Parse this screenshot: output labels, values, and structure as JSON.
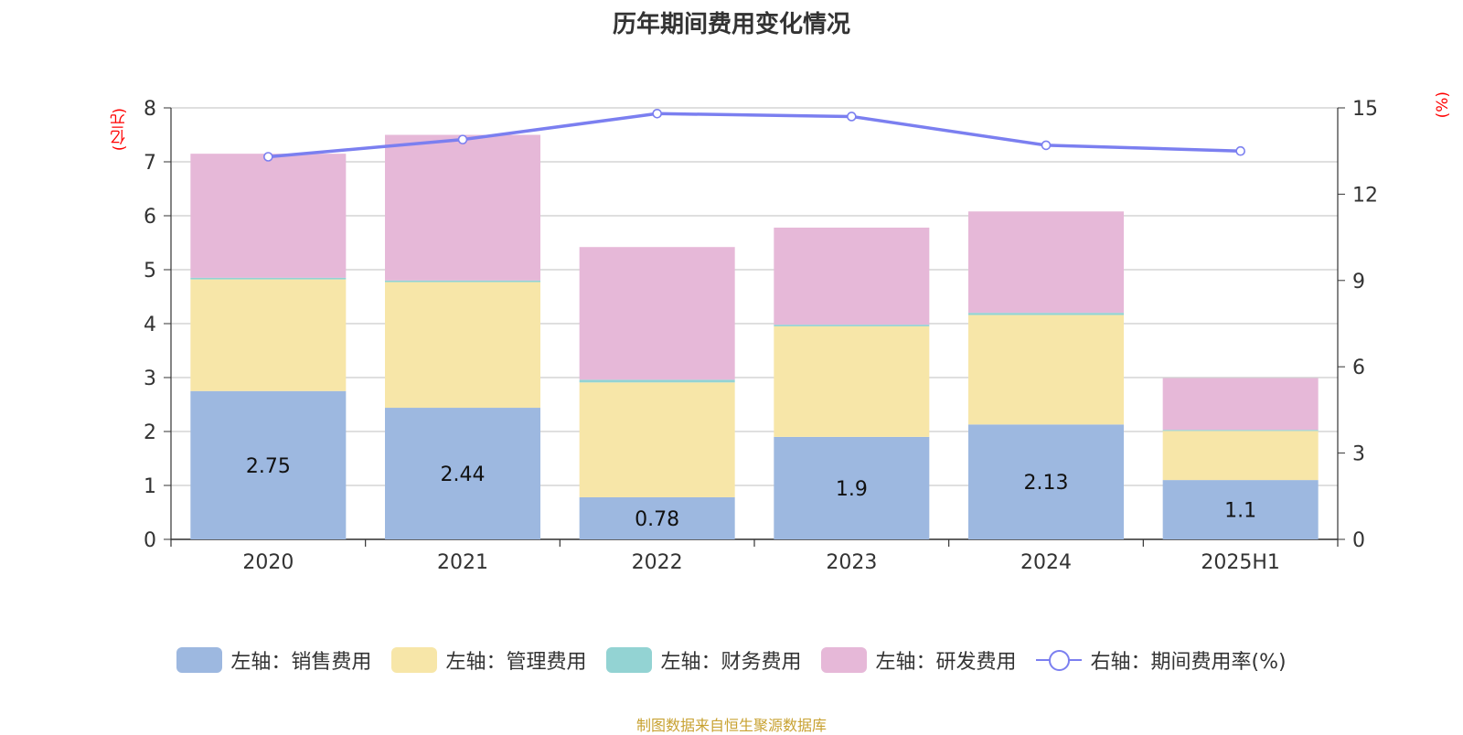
{
  "title": "历年期间费用变化情况",
  "left_unit": "(亿元)",
  "right_unit": "(%)",
  "source": "制图数据来自恒生聚源数据库",
  "colors": {
    "sales": "#9db8e0",
    "admin": "#f7e6a8",
    "finance": "#93d3d3",
    "rd": "#e6b8d8",
    "rate_line": "#7b7ff0"
  },
  "legend": [
    {
      "label": "左轴：销售费用",
      "kind": "box",
      "color": "#9db8e0"
    },
    {
      "label": "左轴：管理费用",
      "kind": "box",
      "color": "#f7e6a8"
    },
    {
      "label": "左轴：财务费用",
      "kind": "box",
      "color": "#93d3d3"
    },
    {
      "label": "左轴：研发费用",
      "kind": "box",
      "color": "#e6b8d8"
    },
    {
      "label": "右轴：期间费用率(%)",
      "kind": "line",
      "color": "#7b7ff0"
    }
  ],
  "chart_data": {
    "type": "bar",
    "stacked": true,
    "title": "历年期间费用变化情况",
    "categories": [
      "2020",
      "2021",
      "2022",
      "2023",
      "2024",
      "2025H1"
    ],
    "ylabel_left": "(亿元)",
    "ylabel_right": "(%)",
    "ylim_left": [
      0,
      8
    ],
    "yticks_left": [
      0,
      1,
      2,
      3,
      4,
      5,
      6,
      7,
      8
    ],
    "ylim_right": [
      0,
      15
    ],
    "yticks_right": [
      0,
      3,
      6,
      9,
      12,
      15
    ],
    "series": [
      {
        "name": "左轴：销售费用",
        "axis": "left",
        "type": "bar",
        "color": "#9db8e0",
        "values": [
          2.75,
          2.44,
          0.78,
          1.9,
          2.13,
          1.1
        ],
        "labels": [
          "2.75",
          "2.44",
          "0.78",
          "1.9",
          "2.13",
          "1.1"
        ]
      },
      {
        "name": "左轴：管理费用",
        "axis": "left",
        "type": "bar",
        "color": "#f7e6a8",
        "values": [
          2.07,
          2.33,
          2.13,
          2.05,
          2.03,
          0.91
        ]
      },
      {
        "name": "左轴：财务费用",
        "axis": "left",
        "type": "bar",
        "color": "#93d3d3",
        "values": [
          0.03,
          0.03,
          0.05,
          0.03,
          0.04,
          0.02
        ]
      },
      {
        "name": "左轴：研发费用",
        "axis": "left",
        "type": "bar",
        "color": "#e6b8d8",
        "values": [
          2.3,
          2.7,
          2.46,
          1.8,
          1.88,
          0.96
        ]
      },
      {
        "name": "右轴：期间费用率(%)",
        "axis": "right",
        "type": "line",
        "color": "#7b7ff0",
        "values": [
          13.3,
          13.9,
          14.8,
          14.7,
          13.7,
          13.5
        ]
      }
    ]
  }
}
